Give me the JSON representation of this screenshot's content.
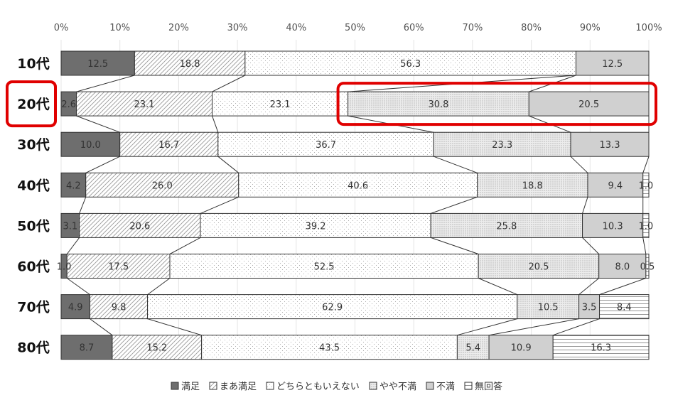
{
  "chart_data": {
    "type": "bar",
    "orientation": "horizontal",
    "stacked": "100%",
    "xlim": [
      0,
      100
    ],
    "x_ticks": [
      "0%",
      "10%",
      "20%",
      "30%",
      "40%",
      "50%",
      "60%",
      "70%",
      "80%",
      "90%",
      "100%"
    ],
    "categories": [
      "10代",
      "20代",
      "30代",
      "40代",
      "50代",
      "60代",
      "70代",
      "80代"
    ],
    "series": [
      {
        "name": "満足",
        "color": "#6e6e6e",
        "pattern": "solid-dark",
        "values": [
          12.5,
          2.6,
          10.0,
          4.2,
          3.1,
          1.0,
          4.9,
          8.7
        ]
      },
      {
        "name": "まあ満足",
        "color": "#ffffff",
        "pattern": "diagonal-hatch",
        "values": [
          18.8,
          23.1,
          16.7,
          26.0,
          20.6,
          17.5,
          9.8,
          15.2
        ]
      },
      {
        "name": "どちらともいえない",
        "color": "#ffffff",
        "pattern": "sparse-dots",
        "values": [
          56.3,
          23.1,
          36.7,
          40.6,
          39.2,
          52.5,
          62.9,
          43.5
        ]
      },
      {
        "name": "やや不満",
        "color": "#e6e6e6",
        "pattern": "dense-dots",
        "values": [
          0,
          30.8,
          23.3,
          18.8,
          25.8,
          20.5,
          10.5,
          5.4
        ]
      },
      {
        "name": "不満",
        "color": "#d0d0d0",
        "pattern": "solid-light",
        "values": [
          12.5,
          20.5,
          13.3,
          9.4,
          10.3,
          8.0,
          3.5,
          10.9
        ]
      },
      {
        "name": "無回答",
        "color": "#ffffff",
        "pattern": "horizontal-lines",
        "values": [
          0,
          0,
          0,
          1.0,
          1.0,
          0.5,
          8.4,
          16.3
        ]
      }
    ],
    "data_labels": [
      [
        "12.5",
        "18.8",
        "56.3",
        "",
        "12.5",
        ""
      ],
      [
        "2.6",
        "23.1",
        "23.1",
        "30.8",
        "20.5",
        ""
      ],
      [
        "10.0",
        "16.7",
        "36.7",
        "23.3",
        "13.3",
        ""
      ],
      [
        "4.2",
        "26.0",
        "40.6",
        "18.8",
        "9.4",
        "1.0"
      ],
      [
        "3.1",
        "20.6",
        "39.2",
        "25.8",
        "10.3",
        "1.0"
      ],
      [
        "1.0",
        "17.5",
        "52.5",
        "20.5",
        "8.0",
        "0.5"
      ],
      [
        "4.9",
        "9.8",
        "62.9",
        "10.5",
        "3.5",
        "8.4"
      ],
      [
        "8.7",
        "15.2",
        "43.5",
        "5.4",
        "10.9",
        "16.3"
      ]
    ],
    "series_lines": true,
    "legend_position": "bottom",
    "highlight": {
      "category": "20代",
      "series": [
        "やや不満",
        "不満"
      ],
      "color": "#e00000"
    },
    "grid": true,
    "title": "",
    "xlabel": "",
    "ylabel": ""
  }
}
